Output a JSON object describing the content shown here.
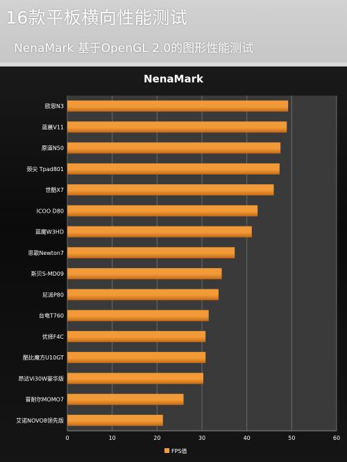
{
  "header": {
    "title": "16款平板横向性能测试",
    "subtitle": "NenaMark 基于OpenGL 2.0的图形性能测试"
  },
  "colors": {
    "bar": "#f29a38",
    "bar_dark": "#c26a14",
    "plot_bg": "#3a3a3a",
    "gridline": "#6a6a6a",
    "text": "#ffffff"
  },
  "chart_data": {
    "type": "bar",
    "orientation": "horizontal",
    "title": "NenaMark",
    "categories": [
      "欧恩N3",
      "蓝晨V11",
      "原道N50",
      "颈尖 Tpad801",
      "世酷X7",
      "ICOO D80",
      "蓝魔W3HD",
      "思歌Newton7",
      "斯贝S-MD09",
      "尼派P80",
      "台电T760",
      "优择F4C",
      "酷比魔方U10GT",
      "昂达Vi30W豪华版",
      "普耐尔MOMO7",
      "艾诺NOVO8领先版"
    ],
    "series": [
      {
        "name": "FPS值",
        "values": [
          49.2,
          48.9,
          47.5,
          47.3,
          46.0,
          42.4,
          41.1,
          37.3,
          34.4,
          33.7,
          31.5,
          30.8,
          30.8,
          30.3,
          25.9,
          21.3
        ]
      }
    ],
    "xlim": [
      0,
      60
    ],
    "xticks": [
      0,
      10,
      20,
      30,
      40,
      50,
      60
    ],
    "grid": true,
    "legend": "bottom"
  }
}
